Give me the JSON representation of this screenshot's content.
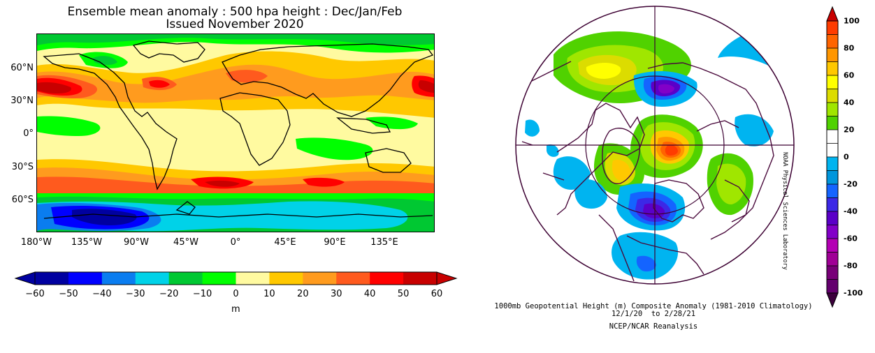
{
  "left_panel": {
    "title_line1": "Ensemble mean anomaly : 500 hpa height : Dec/Jan/Feb",
    "title_line2": "Issued November 2020",
    "lat_labels": [
      "60°N",
      "30°N",
      "0°",
      "30°S",
      "60°S"
    ],
    "lon_labels": [
      "180°W",
      "135°W",
      "90°W",
      "45°W",
      "0°",
      "45°E",
      "90°E",
      "135°E"
    ],
    "colorbar": {
      "labels": [
        "−60",
        "−50",
        "−40",
        "−30",
        "−20",
        "−10",
        "0",
        "10",
        "20",
        "30",
        "40",
        "50",
        "60"
      ],
      "colors": [
        "#0000a0",
        "#0000ff",
        "#0a7df0",
        "#00d2e8",
        "#00c832",
        "#00ff00",
        "#fffaa0",
        "#ffc800",
        "#ff9b1e",
        "#ff5a1e",
        "#ff0000",
        "#c80000"
      ],
      "units": "m"
    }
  },
  "right_panel": {
    "caption_line1": "1000mb Geopotential Height (m) Composite Anomaly (1981-2010 Climatology)",
    "caption_line2": "12/1/20  to 2/28/21",
    "caption_line3": "NCEP/NCAR Reanalysis",
    "credit": "NOAA Physical Sciences Laboratory",
    "colorbar": {
      "labels": [
        "100",
        "80",
        "60",
        "40",
        "20",
        "0",
        "-20",
        "-40",
        "-60",
        "-80",
        "-100"
      ],
      "colors": [
        "#ff3c00",
        "#ff6400",
        "#ff9600",
        "#ffc800",
        "#ffff00",
        "#dcdc00",
        "#a0e600",
        "#50d200",
        "#ffffff",
        "#ffffff",
        "#00b4f0",
        "#0096dc",
        "#1464ff",
        "#3c28e6",
        "#5a00c8",
        "#8200c8",
        "#b400b4",
        "#a00096",
        "#780078",
        "#64006e"
      ]
    }
  }
}
